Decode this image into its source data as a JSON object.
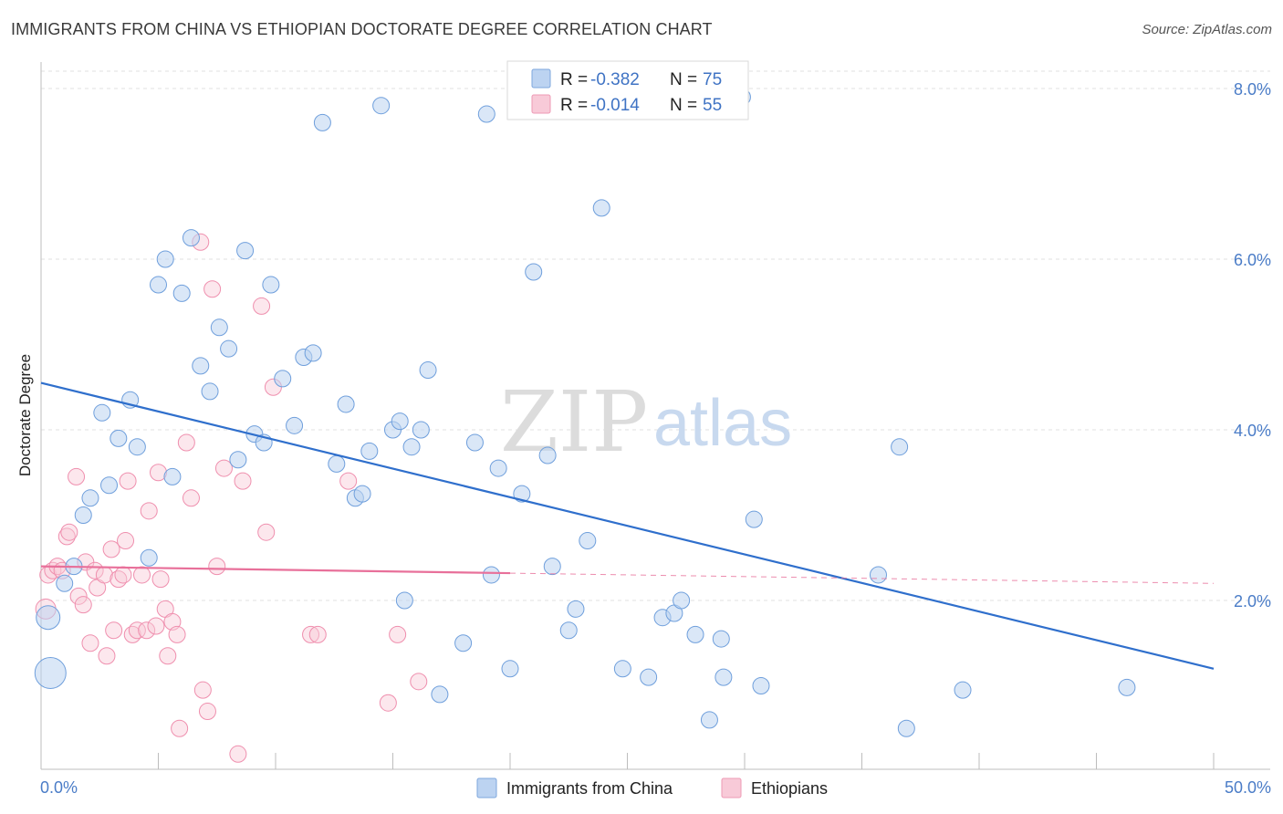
{
  "header": {
    "title": "IMMIGRANTS FROM CHINA VS ETHIOPIAN DOCTORATE DEGREE CORRELATION CHART",
    "source": "Source: ZipAtlas.com"
  },
  "watermark": {
    "zip": "ZIP",
    "atlas": "atlas"
  },
  "legend": {
    "r_label": "R =",
    "n_label": "N =",
    "rows": [
      {
        "r": "-0.382",
        "n": "75",
        "color": "#a9c4ea"
      },
      {
        "r": "-0.014",
        "n": "55",
        "color": "#f5b8cb"
      }
    ]
  },
  "bottom_legend": [
    {
      "label": "Immigrants from China",
      "color": "#a9c4ea"
    },
    {
      "label": "Ethiopians",
      "color": "#f5b8cb"
    }
  ],
  "chart_data": {
    "type": "scatter",
    "title": "IMMIGRANTS FROM CHINA VS ETHIOPIAN DOCTORATE DEGREE CORRELATION CHART",
    "xlabel": "",
    "ylabel": "Doctorate Degree",
    "xlim": [
      0,
      50
    ],
    "ylim": [
      0,
      8.2
    ],
    "x_tick_labels": [
      "0.0%",
      "50.0%"
    ],
    "y_ticks": [
      2,
      4,
      6,
      8
    ],
    "y_tick_labels": [
      "2.0%",
      "4.0%",
      "6.0%",
      "8.0%"
    ],
    "grid": true,
    "legend_position": "top-center",
    "colors": {
      "china": "#6f9fdc",
      "china_fill": "#bcd3f1",
      "ethiopian": "#ef8fae",
      "ethiopian_fill": "#f8cad8",
      "china_line": "#2f6fcc",
      "ethiopian_line": "#e8709a"
    },
    "series": [
      {
        "name": "Immigrants from China",
        "r": -0.382,
        "n": 75,
        "trend": {
          "x": [
            0,
            50
          ],
          "y": [
            4.55,
            1.2
          ]
        },
        "points": [
          [
            0.3,
            1.8,
            14
          ],
          [
            0.4,
            1.15,
            18
          ],
          [
            1.0,
            2.2,
            10
          ],
          [
            1.4,
            2.4,
            10
          ],
          [
            1.8,
            3.0,
            10
          ],
          [
            2.1,
            3.2,
            10
          ],
          [
            2.6,
            4.2,
            10
          ],
          [
            2.9,
            3.35,
            10
          ],
          [
            3.3,
            3.9,
            10
          ],
          [
            3.8,
            4.35,
            10
          ],
          [
            4.1,
            3.8,
            10
          ],
          [
            4.6,
            2.5,
            10
          ],
          [
            5.0,
            5.7,
            10
          ],
          [
            5.3,
            6.0,
            10
          ],
          [
            5.6,
            3.45,
            10
          ],
          [
            6.0,
            5.6,
            10
          ],
          [
            6.4,
            6.25,
            10
          ],
          [
            6.8,
            4.75,
            10
          ],
          [
            7.2,
            4.45,
            10
          ],
          [
            7.6,
            5.2,
            10
          ],
          [
            8.0,
            4.95,
            10
          ],
          [
            8.4,
            3.65,
            10
          ],
          [
            8.7,
            6.1,
            10
          ],
          [
            9.1,
            3.95,
            10
          ],
          [
            9.5,
            3.85,
            10
          ],
          [
            9.8,
            5.7,
            10
          ],
          [
            10.3,
            4.6,
            10
          ],
          [
            10.8,
            4.05,
            10
          ],
          [
            11.2,
            4.85,
            10
          ],
          [
            11.6,
            4.9,
            10
          ],
          [
            12.0,
            7.6,
            10
          ],
          [
            12.6,
            3.6,
            10
          ],
          [
            13.0,
            4.3,
            10
          ],
          [
            13.4,
            3.2,
            10
          ],
          [
            13.7,
            3.25,
            10
          ],
          [
            14.0,
            3.75,
            10
          ],
          [
            14.5,
            7.8,
            10
          ],
          [
            15.0,
            4.0,
            10
          ],
          [
            15.3,
            4.1,
            10
          ],
          [
            15.5,
            2.0,
            10
          ],
          [
            15.8,
            3.8,
            10
          ],
          [
            16.2,
            4.0,
            10
          ],
          [
            16.5,
            4.7,
            10
          ],
          [
            17.0,
            0.9,
            10
          ],
          [
            18.0,
            1.5,
            10
          ],
          [
            18.5,
            3.85,
            10
          ],
          [
            19.0,
            7.7,
            10
          ],
          [
            19.2,
            2.3,
            10
          ],
          [
            19.5,
            3.55,
            10
          ],
          [
            20.0,
            1.2,
            10
          ],
          [
            20.5,
            3.25,
            10
          ],
          [
            21.0,
            5.85,
            10
          ],
          [
            21.6,
            3.7,
            10
          ],
          [
            21.8,
            2.4,
            10
          ],
          [
            22.5,
            1.65,
            10
          ],
          [
            22.8,
            1.9,
            10
          ],
          [
            23.3,
            2.7,
            10
          ],
          [
            23.9,
            6.6,
            10
          ],
          [
            24.8,
            1.2,
            10
          ],
          [
            25.9,
            1.1,
            10
          ],
          [
            26.5,
            1.8,
            10
          ],
          [
            27.0,
            1.85,
            10
          ],
          [
            27.3,
            2.0,
            10
          ],
          [
            27.9,
            1.6,
            10
          ],
          [
            28.5,
            0.6,
            10
          ],
          [
            29.0,
            1.55,
            10
          ],
          [
            29.1,
            1.1,
            10
          ],
          [
            29.9,
            7.9,
            10
          ],
          [
            30.4,
            2.95,
            10
          ],
          [
            30.7,
            1.0,
            10
          ],
          [
            35.7,
            2.3,
            10
          ],
          [
            36.6,
            3.8,
            10
          ],
          [
            36.9,
            0.5,
            10
          ],
          [
            39.3,
            0.95,
            10
          ],
          [
            46.3,
            0.98,
            10
          ]
        ]
      },
      {
        "name": "Ethiopians",
        "r": -0.014,
        "n": 55,
        "trend": {
          "x": [
            0,
            20,
            50
          ],
          "y": [
            2.4,
            2.32,
            2.2
          ]
        },
        "points": [
          [
            0.2,
            1.9,
            12
          ],
          [
            0.3,
            2.3,
            10
          ],
          [
            0.5,
            2.35,
            10
          ],
          [
            0.7,
            2.4,
            10
          ],
          [
            0.9,
            2.35,
            10
          ],
          [
            1.1,
            2.75,
            10
          ],
          [
            1.2,
            2.8,
            10
          ],
          [
            1.5,
            3.45,
            10
          ],
          [
            1.6,
            2.05,
            10
          ],
          [
            1.8,
            1.95,
            10
          ],
          [
            1.9,
            2.45,
            10
          ],
          [
            2.1,
            1.5,
            10
          ],
          [
            2.3,
            2.35,
            10
          ],
          [
            2.4,
            2.15,
            10
          ],
          [
            2.7,
            2.3,
            10
          ],
          [
            2.8,
            1.35,
            10
          ],
          [
            3.0,
            2.6,
            10
          ],
          [
            3.1,
            1.65,
            10
          ],
          [
            3.3,
            2.25,
            10
          ],
          [
            3.5,
            2.3,
            10
          ],
          [
            3.6,
            2.7,
            10
          ],
          [
            3.7,
            3.4,
            10
          ],
          [
            3.9,
            1.6,
            10
          ],
          [
            4.1,
            1.65,
            10
          ],
          [
            4.3,
            2.3,
            10
          ],
          [
            4.5,
            1.65,
            10
          ],
          [
            4.6,
            3.05,
            10
          ],
          [
            4.9,
            1.7,
            10
          ],
          [
            5.0,
            3.5,
            10
          ],
          [
            5.1,
            2.25,
            10
          ],
          [
            5.3,
            1.9,
            10
          ],
          [
            5.4,
            1.35,
            10
          ],
          [
            5.6,
            1.75,
            10
          ],
          [
            5.8,
            1.6,
            10
          ],
          [
            5.9,
            0.5,
            10
          ],
          [
            6.2,
            3.85,
            10
          ],
          [
            6.4,
            3.2,
            10
          ],
          [
            6.8,
            6.2,
            10
          ],
          [
            6.9,
            0.95,
            10
          ],
          [
            7.1,
            0.7,
            10
          ],
          [
            7.3,
            5.65,
            10
          ],
          [
            7.5,
            2.4,
            10
          ],
          [
            7.8,
            3.55,
            10
          ],
          [
            8.4,
            0.2,
            10
          ],
          [
            8.6,
            3.4,
            10
          ],
          [
            9.4,
            5.45,
            10
          ],
          [
            9.6,
            2.8,
            10
          ],
          [
            9.9,
            4.5,
            10
          ],
          [
            11.5,
            1.6,
            10
          ],
          [
            11.8,
            1.6,
            10
          ],
          [
            13.1,
            3.4,
            10
          ],
          [
            14.8,
            0.8,
            10
          ],
          [
            15.2,
            1.6,
            10
          ],
          [
            16.1,
            1.05,
            10
          ],
          [
            7.9,
            1.6,
            0
          ]
        ]
      }
    ]
  }
}
